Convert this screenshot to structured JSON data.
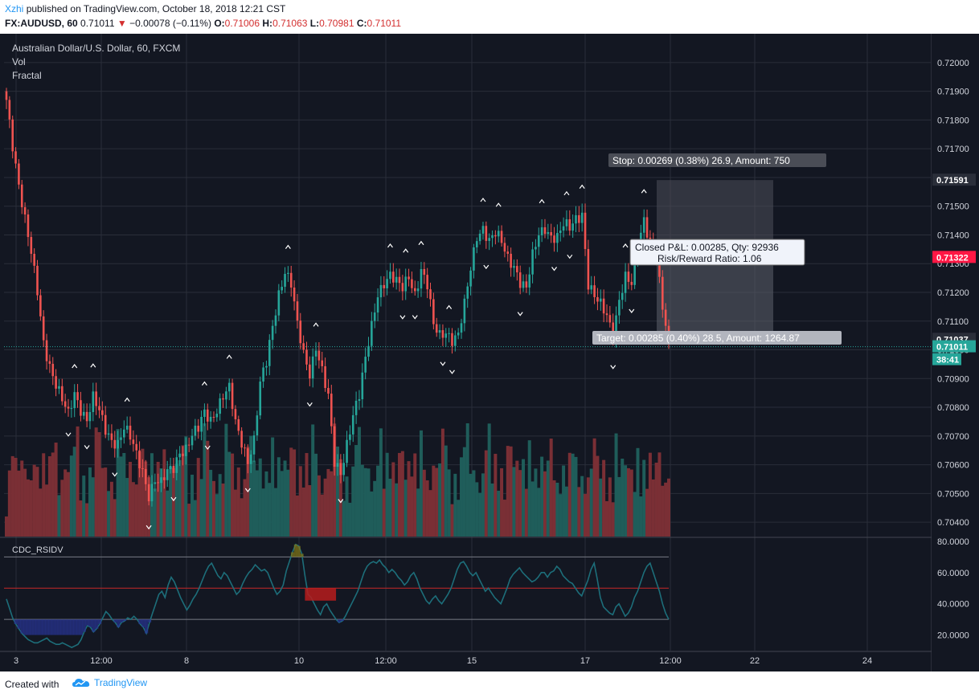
{
  "header": {
    "author": "Xzhi",
    "published": "published on TradingView.com, October 18, 2018 12:21 CST",
    "symbol": "FX:AUDUSD, 60",
    "last": "0.71011",
    "change": "−0.00078 (−0.11%)",
    "o_label": "O:",
    "o": "0.71006",
    "h_label": "H:",
    "h": "0.71063",
    "l_label": "L:",
    "l": "0.70981",
    "c_label": "C:",
    "c": "0.71011"
  },
  "legend": {
    "title": "Australian Dollar/U.S. Dollar, 60, FXCM",
    "vol": "Vol",
    "fractal": "Fractal"
  },
  "colors": {
    "background": "#131722",
    "up": "#26a69a",
    "down": "#ef5350",
    "vol_up": "#1f5d5a",
    "vol_down": "#7a2f35",
    "grid": "#2a2e39",
    "oscillator": "#1d6e7a"
  },
  "footer": {
    "created": "Created with",
    "brand": "TradingView",
    "logo_icon": "tradingview-cloud-icon"
  },
  "chart_data": [
    {
      "type": "candlestick",
      "title": "Australian Dollar/U.S. Dollar, 60, FXCM",
      "interval": "60",
      "ylim": [
        0.7035,
        0.7205
      ],
      "y_ticks": [
        "0.72000",
        "0.71900",
        "0.71800",
        "0.71700",
        "0.71600",
        "0.71500",
        "0.71400",
        "0.71300",
        "0.71200",
        "0.71100",
        "0.71000",
        "0.70900",
        "0.70800",
        "0.70700",
        "0.70600",
        "0.70500",
        "0.70400"
      ],
      "x_ticks": [
        "3",
        "12:00",
        "8",
        "10",
        "12:00",
        "15",
        "17",
        "12:00",
        "22",
        "24"
      ],
      "close_path": [
        [
          0,
          0.7187
        ],
        [
          2,
          0.7172
        ],
        [
          4,
          0.7158
        ],
        [
          6,
          0.7145
        ],
        [
          8,
          0.7133
        ],
        [
          10,
          0.712
        ],
        [
          12,
          0.7103
        ],
        [
          14,
          0.7095
        ],
        [
          16,
          0.7088
        ],
        [
          18,
          0.7082
        ],
        [
          20,
          0.7077
        ],
        [
          22,
          0.7085
        ],
        [
          24,
          0.708
        ],
        [
          26,
          0.7076
        ],
        [
          28,
          0.7083
        ],
        [
          30,
          0.7078
        ],
        [
          32,
          0.7072
        ],
        [
          34,
          0.7069
        ],
        [
          36,
          0.7068
        ],
        [
          38,
          0.7073
        ],
        [
          40,
          0.7069
        ],
        [
          42,
          0.7063
        ],
        [
          44,
          0.7058
        ],
        [
          46,
          0.705
        ],
        [
          48,
          0.7055
        ],
        [
          50,
          0.7053
        ],
        [
          52,
          0.7057
        ],
        [
          54,
          0.7059
        ],
        [
          56,
          0.7065
        ],
        [
          58,
          0.7066
        ],
        [
          60,
          0.707
        ],
        [
          62,
          0.7072
        ],
        [
          64,
          0.7078
        ],
        [
          66,
          0.7076
        ],
        [
          68,
          0.708
        ],
        [
          70,
          0.7084
        ],
        [
          72,
          0.7086
        ],
        [
          74,
          0.7074
        ],
        [
          76,
          0.7068
        ],
        [
          78,
          0.7062
        ],
        [
          80,
          0.7069
        ],
        [
          82,
          0.7088
        ],
        [
          84,
          0.7095
        ],
        [
          86,
          0.7108
        ],
        [
          88,
          0.712
        ],
        [
          90,
          0.7128
        ],
        [
          92,
          0.7123
        ],
        [
          94,
          0.7108
        ],
        [
          96,
          0.7098
        ],
        [
          98,
          0.7092
        ],
        [
          100,
          0.7102
        ],
        [
          102,
          0.7093
        ],
        [
          104,
          0.7083
        ],
        [
          106,
          0.706
        ],
        [
          108,
          0.7057
        ],
        [
          110,
          0.7068
        ],
        [
          112,
          0.7078
        ],
        [
          114,
          0.7084
        ],
        [
          116,
          0.7096
        ],
        [
          118,
          0.7108
        ],
        [
          120,
          0.712
        ],
        [
          122,
          0.7124
        ],
        [
          124,
          0.7126
        ],
        [
          126,
          0.7123
        ],
        [
          128,
          0.7121
        ],
        [
          130,
          0.7126
        ],
        [
          132,
          0.712
        ],
        [
          134,
          0.7128
        ],
        [
          136,
          0.7122
        ],
        [
          138,
          0.7108
        ],
        [
          140,
          0.7105
        ],
        [
          142,
          0.7107
        ],
        [
          144,
          0.7104
        ],
        [
          146,
          0.7105
        ],
        [
          148,
          0.7115
        ],
        [
          150,
          0.7128
        ],
        [
          152,
          0.714
        ],
        [
          154,
          0.7143
        ],
        [
          156,
          0.7138
        ],
        [
          158,
          0.714
        ],
        [
          160,
          0.7137
        ],
        [
          162,
          0.7132
        ],
        [
          164,
          0.713
        ],
        [
          166,
          0.7124
        ],
        [
          168,
          0.7121
        ],
        [
          170,
          0.7132
        ],
        [
          172,
          0.714
        ],
        [
          174,
          0.7143
        ],
        [
          176,
          0.714
        ],
        [
          178,
          0.7139
        ],
        [
          180,
          0.7143
        ],
        [
          182,
          0.7142
        ],
        [
          184,
          0.7146
        ],
        [
          186,
          0.7148
        ],
        [
          188,
          0.7123
        ],
        [
          190,
          0.7118
        ],
        [
          192,
          0.7115
        ],
        [
          194,
          0.7112
        ],
        [
          196,
          0.7106
        ],
        [
          198,
          0.7118
        ],
        [
          200,
          0.7125
        ],
        [
          202,
          0.7122
        ],
        [
          204,
          0.7135
        ],
        [
          206,
          0.7146
        ],
        [
          208,
          0.7138
        ],
        [
          210,
          0.7132
        ],
        [
          212,
          0.7114
        ],
        [
          214,
          0.7101
        ]
      ],
      "last_price": "0.71011",
      "price_labels": [
        {
          "value": "0.71591",
          "color": "#131722"
        },
        {
          "value": "0.71322",
          "color": "#ff1744"
        },
        {
          "value": "0.71037",
          "color": "#131722"
        },
        {
          "value": "0.71011",
          "color": "#26a69a"
        },
        {
          "value": "38:41",
          "color": "#26a69a"
        }
      ],
      "position": {
        "stop": "Stop: 0.00269 (0.38%) 26.9, Amount: 750",
        "pnl": "Closed P&L: 0.00285, Qty: 92936",
        "rr": "Risk/Reward Ratio: 1.06",
        "target": "Target: 0.00285 (0.40%) 28.5, Amount: 1264.87",
        "entry": 0.71322,
        "stop_price": 0.71591,
        "target_price": 0.71037
      }
    },
    {
      "type": "line",
      "title": "CDC_RSIDV",
      "ylim": [
        10,
        82
      ],
      "y_ticks": [
        "80.0000",
        "60.0000",
        "40.0000",
        "20.0000"
      ],
      "levels": [
        70,
        50,
        30
      ],
      "values": [
        43,
        37,
        31,
        27,
        24,
        21,
        19,
        17,
        16,
        15,
        15,
        16,
        17,
        18,
        16,
        15,
        14,
        14,
        15,
        14,
        13,
        12,
        13,
        14,
        17,
        22,
        26,
        25,
        22,
        24,
        27,
        31,
        35,
        33,
        30,
        28,
        25,
        28,
        29,
        31,
        30,
        32,
        30,
        27,
        25,
        21,
        28,
        34,
        40,
        46,
        48,
        44,
        52,
        57,
        54,
        49,
        44,
        40,
        36,
        39,
        43,
        46,
        50,
        55,
        60,
        64,
        66,
        62,
        58,
        56,
        60,
        58,
        54,
        50,
        46,
        48,
        53,
        57,
        60,
        62,
        65,
        63,
        61,
        62,
        60,
        55,
        50,
        46,
        48,
        52,
        61,
        67,
        73,
        78,
        77,
        72,
        58,
        46,
        44,
        40,
        36,
        33,
        38,
        40,
        36,
        33,
        30,
        28,
        29,
        32,
        36,
        40,
        44,
        48,
        54,
        60,
        64,
        66,
        67,
        66,
        68,
        65,
        63,
        60,
        62,
        60,
        57,
        55,
        52,
        54,
        58,
        60,
        56,
        50,
        46,
        42,
        40,
        43,
        45,
        42,
        40,
        43,
        46,
        50,
        56,
        62,
        66,
        67,
        64,
        60,
        58,
        60,
        56,
        52,
        48,
        50,
        47,
        44,
        42,
        40,
        45,
        50,
        56,
        59,
        61,
        63,
        60,
        58,
        56,
        54,
        55,
        57,
        60,
        60,
        57,
        60,
        61,
        64,
        62,
        58,
        56,
        54,
        53,
        50,
        47,
        45,
        50,
        55,
        62,
        66,
        56,
        44,
        38,
        36,
        34,
        33,
        38,
        40,
        36,
        32,
        34,
        38,
        44,
        48,
        54,
        60,
        64,
        66,
        60,
        54,
        48,
        40,
        34,
        30
      ],
      "note": "oscillator pane with 70/50/30 bands"
    },
    {
      "type": "bar",
      "title": "Vol",
      "note": "volume histogram at bottom of price pane"
    }
  ]
}
